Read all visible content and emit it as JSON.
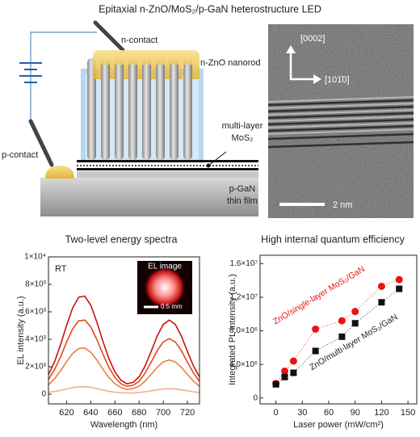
{
  "title": "Epitaxial n-ZnO/MoS₂/p-GaN heterostructure LED",
  "schematic": {
    "n_contact": "n-contact",
    "nanorod": "n-ZnO nanorod",
    "mos2": [
      "multi-layer",
      "MoS₂"
    ],
    "p_contact": "p-contact",
    "pgan": [
      "p-GaN",
      "thin film"
    ]
  },
  "tem": {
    "direction_vertical": "[0002]",
    "direction_horizontal": "[101̄0]",
    "scale_bar": "2 nm"
  },
  "chart_data": [
    {
      "type": "line",
      "title": "Two-level energy spectra",
      "xlabel": "Wavelength (nm)",
      "ylabel": "EL intensity (a.u.)",
      "annotation": "RT",
      "inset": {
        "title": "EL image",
        "scale": "0.5 mm"
      },
      "xlim": [
        605,
        730
      ],
      "xticks": [
        620,
        640,
        660,
        680,
        700,
        720
      ],
      "ylim": [
        -700,
        10000
      ],
      "yticks": [
        0,
        {
          "value": 2000,
          "label": "2×10³"
        },
        {
          "value": 4000,
          "label": "4×10³"
        },
        {
          "value": 6000,
          "label": "6×10³"
        },
        {
          "value": 8000,
          "label": "8×10³"
        },
        {
          "value": 10000,
          "label": "1×10⁴"
        }
      ],
      "grid": false,
      "x": [
        605,
        610,
        615,
        620,
        625,
        630,
        635,
        640,
        645,
        650,
        655,
        660,
        665,
        670,
        675,
        680,
        685,
        690,
        695,
        700,
        705,
        710,
        715,
        720,
        725,
        730
      ],
      "series": [
        {
          "color": "#c4150f",
          "values": [
            1430,
            2360,
            3610,
            5010,
            6270,
            7060,
            7140,
            6480,
            5280,
            3880,
            2590,
            1620,
            1010,
            765,
            865,
            1260,
            2070,
            3130,
            4230,
            5080,
            5400,
            5080,
            4230,
            3130,
            2070,
            1260
          ]
        },
        {
          "color": "#e8451f",
          "values": [
            1080,
            1790,
            2730,
            3790,
            4750,
            5340,
            5400,
            4900,
            4000,
            2940,
            1960,
            1220,
            760,
            580,
            650,
            940,
            1550,
            2350,
            3170,
            3810,
            4050,
            3810,
            3170,
            2350,
            1550,
            940
          ]
        },
        {
          "color": "#f07d3c",
          "values": [
            680,
            1120,
            1710,
            2370,
            2960,
            3330,
            3370,
            3060,
            2500,
            1840,
            1230,
            770,
            480,
            360,
            410,
            590,
            960,
            1450,
            1960,
            2350,
            2500,
            2350,
            1960,
            1450,
            960,
            590
          ]
        },
        {
          "color": "#f5ad96",
          "values": [
            140,
            200,
            290,
            390,
            480,
            540,
            550,
            500,
            410,
            310,
            220,
            150,
            110,
            90,
            100,
            120,
            180,
            250,
            320,
            380,
            400,
            380,
            320,
            250,
            180,
            120
          ]
        }
      ]
    },
    {
      "type": "scatter",
      "title": "High internal quantum efficiency",
      "xlabel": "Laser power (mW/cm²)",
      "ylabel": "Integrated PL intensity (a.u.)",
      "xlim": [
        -18,
        160
      ],
      "xticks": [
        0,
        30,
        60,
        90,
        120,
        150
      ],
      "ylim": [
        -700000,
        17000000
      ],
      "yticks": [
        0,
        {
          "value": 4000000,
          "label": "4.0×10⁶"
        },
        {
          "value": 8000000,
          "label": "8.0×10⁶"
        },
        {
          "value": 12000000,
          "label": "1.2×10⁷"
        },
        {
          "value": 16000000,
          "label": "1.6×10⁷"
        }
      ],
      "grid": false,
      "series": [
        {
          "name": "ZnO/single-layer MoS₂/GaN",
          "color": "#ee1111",
          "marker": "circle",
          "x": [
            0,
            10,
            20,
            45,
            75,
            90,
            120,
            140
          ],
          "values": [
            1720000,
            3200000,
            4400000,
            8200000,
            9200000,
            10300000,
            13300000,
            14100000
          ]
        },
        {
          "name": "ZnO/multi-layer MoS₂/GaN",
          "color": "#111111",
          "marker": "square",
          "x": [
            0,
            10,
            20,
            45,
            75,
            90,
            120,
            140
          ],
          "values": [
            1630000,
            2500000,
            3000000,
            5600000,
            7300000,
            8900000,
            11400000,
            13000000
          ]
        }
      ]
    }
  ]
}
